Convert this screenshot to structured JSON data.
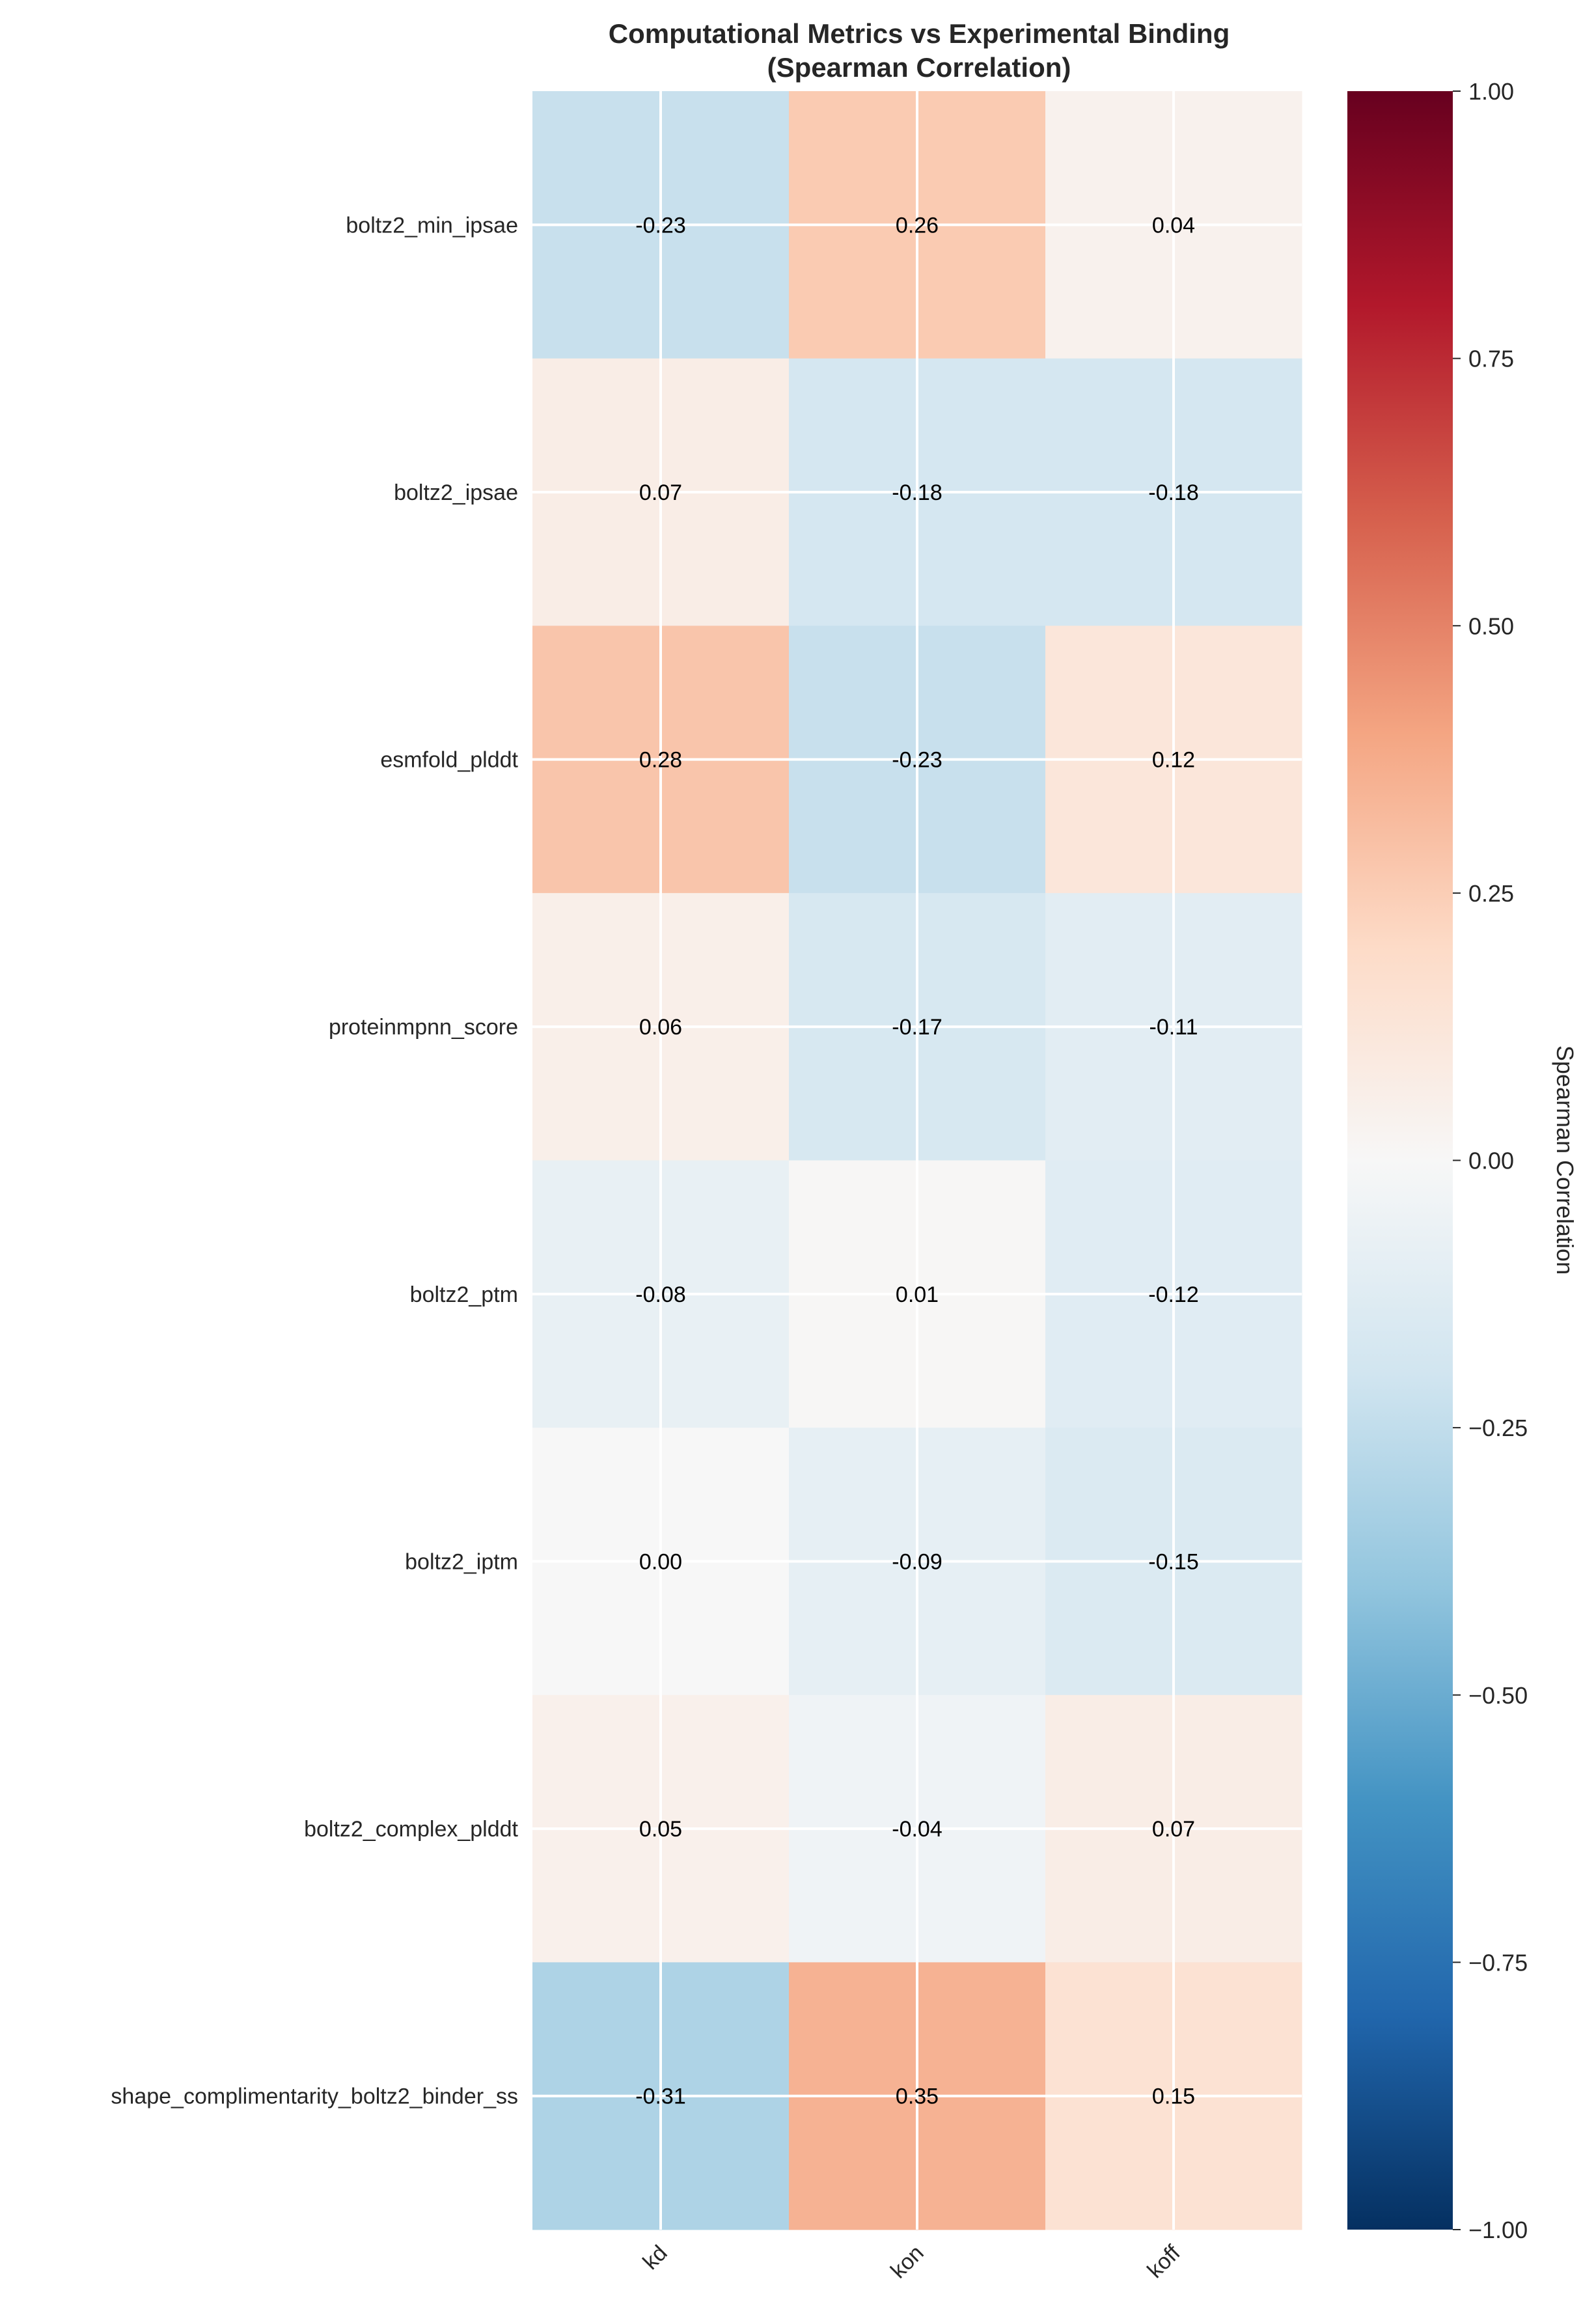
{
  "chart_data": {
    "type": "heatmap",
    "title": "Computational Metrics vs Experimental Binding",
    "subtitle": "(Spearman Correlation)",
    "rows": [
      "boltz2_min_ipsae",
      "boltz2_ipsae",
      "esmfold_plddt",
      "proteinmpnn_score",
      "boltz2_ptm",
      "boltz2_iptm",
      "boltz2_complex_plddt",
      "shape_complimentarity_boltz2_binder_ss"
    ],
    "columns": [
      "kd",
      "kon",
      "koff"
    ],
    "values": [
      [
        -0.23,
        0.26,
        0.04
      ],
      [
        0.07,
        -0.18,
        -0.18
      ],
      [
        0.28,
        -0.23,
        0.12
      ],
      [
        0.06,
        -0.17,
        -0.11
      ],
      [
        -0.08,
        0.01,
        -0.12
      ],
      [
        0.0,
        -0.09,
        -0.15
      ],
      [
        0.05,
        -0.04,
        0.07
      ],
      [
        -0.31,
        0.35,
        0.15
      ]
    ],
    "value_labels": [
      [
        "-0.23",
        "0.26",
        "0.04"
      ],
      [
        "0.07",
        "-0.18",
        "-0.18"
      ],
      [
        "0.28",
        "-0.23",
        "0.12"
      ],
      [
        "0.06",
        "-0.17",
        "-0.11"
      ],
      [
        "-0.08",
        "0.01",
        "-0.12"
      ],
      [
        "0.00",
        "-0.09",
        "-0.15"
      ],
      [
        "0.05",
        "-0.04",
        "0.07"
      ],
      [
        "-0.31",
        "0.35",
        "0.15"
      ]
    ],
    "colorscale": "RdBu_r",
    "vmin": -1.0,
    "vmax": 1.0,
    "colorbar": {
      "label": "Spearman Correlation",
      "ticks": [
        1.0,
        0.75,
        0.5,
        0.25,
        0.0,
        -0.25,
        -0.5,
        -0.75,
        -1.0
      ],
      "tick_labels": [
        "1.00",
        "0.75",
        "0.50",
        "0.25",
        "0.00",
        "−0.25",
        "−0.50",
        "−0.75",
        "−1.00"
      ]
    },
    "grid": true,
    "xlabel": "",
    "ylabel": ""
  }
}
